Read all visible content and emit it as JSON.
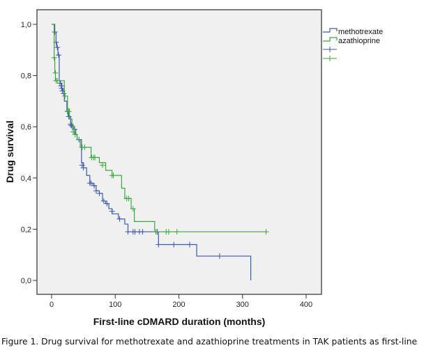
{
  "chart_data": {
    "type": "line",
    "subtype": "kaplan-meier-step",
    "title": "",
    "xlabel": "First-line cDMARD duration (months)",
    "ylabel": "Drug survival",
    "xlim": [
      -20,
      420
    ],
    "ylim": [
      -0.05,
      1.05
    ],
    "xticks": [
      0,
      100,
      200,
      300,
      400
    ],
    "xtick_labels": [
      "0",
      "100",
      "200",
      "300",
      "400"
    ],
    "yticks": [
      0.0,
      0.2,
      0.4,
      0.6,
      0.8,
      1.0
    ],
    "ytick_labels": [
      "0,0",
      "0,2",
      "0,4",
      "0,6",
      "0,8",
      "1,0"
    ],
    "grid": false,
    "legend_placement": "right-outside-top",
    "legend": [
      {
        "label": "methotrexate",
        "kind": "line",
        "series": 0
      },
      {
        "label": "azathioprine",
        "kind": "line",
        "series": 1
      },
      {
        "label": "",
        "kind": "censor",
        "series": 0
      },
      {
        "label": "",
        "kind": "censor",
        "series": 1
      }
    ],
    "series": [
      {
        "name": "methotrexate",
        "color": "#3c58a8",
        "steps": [
          [
            0,
            1.0
          ],
          [
            5,
            0.97
          ],
          [
            7,
            0.93
          ],
          [
            8,
            0.91
          ],
          [
            10,
            0.88
          ],
          [
            12,
            0.78
          ],
          [
            14,
            0.77
          ],
          [
            16,
            0.75
          ],
          [
            18,
            0.74
          ],
          [
            20,
            0.7
          ],
          [
            24,
            0.66
          ],
          [
            26,
            0.64
          ],
          [
            30,
            0.61
          ],
          [
            32,
            0.6
          ],
          [
            35,
            0.59
          ],
          [
            38,
            0.57
          ],
          [
            40,
            0.55
          ],
          [
            47,
            0.46
          ],
          [
            50,
            0.44
          ],
          [
            55,
            0.41
          ],
          [
            60,
            0.38
          ],
          [
            65,
            0.37
          ],
          [
            70,
            0.35
          ],
          [
            75,
            0.34
          ],
          [
            80,
            0.31
          ],
          [
            85,
            0.3
          ],
          [
            90,
            0.28
          ],
          [
            95,
            0.26
          ],
          [
            105,
            0.24
          ],
          [
            115,
            0.22
          ],
          [
            120,
            0.19
          ],
          [
            168,
            0.14
          ],
          [
            228,
            0.095
          ],
          [
            313,
            0.0
          ]
        ],
        "end_x": 313,
        "censored": [
          [
            5,
            0.97
          ],
          [
            7,
            0.93
          ],
          [
            9,
            0.91
          ],
          [
            11,
            0.88
          ],
          [
            13,
            0.77
          ],
          [
            15,
            0.76
          ],
          [
            16,
            0.75
          ],
          [
            17,
            0.74
          ],
          [
            19,
            0.73
          ],
          [
            25,
            0.66
          ],
          [
            27,
            0.64
          ],
          [
            30,
            0.61
          ],
          [
            31,
            0.605
          ],
          [
            33,
            0.6
          ],
          [
            36,
            0.59
          ],
          [
            43,
            0.55
          ],
          [
            48,
            0.45
          ],
          [
            50,
            0.44
          ],
          [
            60,
            0.38
          ],
          [
            62,
            0.38
          ],
          [
            67,
            0.37
          ],
          [
            70,
            0.35
          ],
          [
            75,
            0.34
          ],
          [
            82,
            0.31
          ],
          [
            87,
            0.3
          ],
          [
            95,
            0.27
          ],
          [
            107,
            0.24
          ],
          [
            120,
            0.19
          ],
          [
            128,
            0.19
          ],
          [
            131,
            0.19
          ],
          [
            138,
            0.19
          ],
          [
            143,
            0.19
          ],
          [
            166,
            0.19
          ],
          [
            168,
            0.14
          ],
          [
            192,
            0.14
          ],
          [
            217,
            0.14
          ],
          [
            264,
            0.095
          ]
        ]
      },
      {
        "name": "azathioprine",
        "color": "#3aa83a",
        "steps": [
          [
            0,
            1.0
          ],
          [
            4,
            0.87
          ],
          [
            5,
            0.81
          ],
          [
            6,
            0.78
          ],
          [
            20,
            0.72
          ],
          [
            25,
            0.67
          ],
          [
            28,
            0.63
          ],
          [
            32,
            0.6
          ],
          [
            36,
            0.57
          ],
          [
            40,
            0.55
          ],
          [
            45,
            0.52
          ],
          [
            62,
            0.48
          ],
          [
            75,
            0.46
          ],
          [
            85,
            0.43
          ],
          [
            95,
            0.41
          ],
          [
            110,
            0.36
          ],
          [
            115,
            0.32
          ],
          [
            125,
            0.28
          ],
          [
            130,
            0.23
          ],
          [
            162,
            0.19
          ]
        ],
        "end_x": 337,
        "censored": [
          [
            4,
            0.87
          ],
          [
            6,
            0.81
          ],
          [
            7,
            0.78
          ],
          [
            9,
            0.78
          ],
          [
            21,
            0.72
          ],
          [
            25,
            0.66
          ],
          [
            27,
            0.66
          ],
          [
            34,
            0.58
          ],
          [
            37,
            0.57
          ],
          [
            48,
            0.52
          ],
          [
            52,
            0.52
          ],
          [
            63,
            0.48
          ],
          [
            66,
            0.48
          ],
          [
            68,
            0.48
          ],
          [
            80,
            0.45
          ],
          [
            95,
            0.41
          ],
          [
            97,
            0.41
          ],
          [
            118,
            0.32
          ],
          [
            121,
            0.32
          ],
          [
            128,
            0.28
          ],
          [
            164,
            0.19
          ],
          [
            180,
            0.19
          ],
          [
            184,
            0.19
          ],
          [
            197,
            0.19
          ],
          [
            337,
            0.19
          ]
        ]
      }
    ]
  },
  "caption": "Figure 1. Drug survival for methotrexate and azathioprine treatments in TAK patients as first-line"
}
